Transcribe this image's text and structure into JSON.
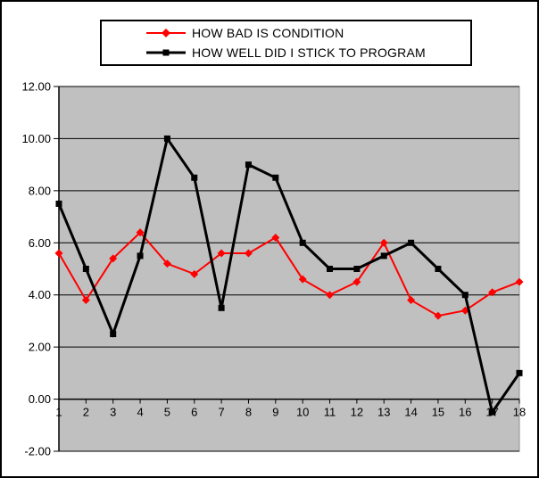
{
  "chart_data": {
    "type": "line",
    "title": "",
    "xlabel": "",
    "ylabel": "",
    "categories": [
      "1",
      "2",
      "3",
      "4",
      "5",
      "6",
      "7",
      "8",
      "9",
      "10",
      "11",
      "12",
      "13",
      "14",
      "15",
      "16",
      "17",
      "18"
    ],
    "series": [
      {
        "name": "HOW BAD IS CONDITION",
        "color": "#ff0000",
        "marker": "diamond",
        "line_width": 2,
        "values": [
          5.6,
          3.8,
          5.4,
          6.4,
          5.2,
          4.8,
          5.6,
          5.6,
          6.2,
          4.6,
          4.0,
          4.5,
          6.0,
          3.8,
          3.2,
          3.4,
          4.1,
          4.5
        ]
      },
      {
        "name": "HOW WELL DID I STICK TO PROGRAM",
        "color": "#000000",
        "marker": "square",
        "line_width": 3,
        "values": [
          7.5,
          5.0,
          2.5,
          5.5,
          10.0,
          8.5,
          3.5,
          9.0,
          8.5,
          6.0,
          5.0,
          5.0,
          5.5,
          6.0,
          5.0,
          4.0,
          -0.5,
          1.0
        ]
      }
    ],
    "ylim": [
      -2,
      12
    ],
    "ytick_step": 2,
    "ytick_labels": [
      "12.00",
      "10.00",
      "8.00",
      "6.00",
      "4.00",
      "2.00",
      "0.00",
      "-2.00"
    ],
    "grid": true,
    "legend_position": "top-center",
    "plot_bg_color": "#c0c0c0",
    "plot_border_color": "#909090",
    "gridline_color": "#000000",
    "axis_color": "#000000",
    "outer_bg_color": "#ffffff"
  }
}
